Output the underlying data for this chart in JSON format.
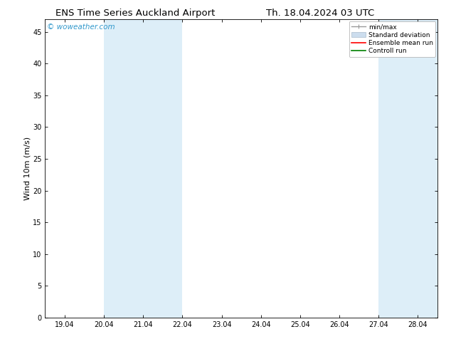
{
  "title_left": "ENS Time Series Auckland Airport",
  "title_right": "Th. 18.04.2024 03 UTC",
  "ylabel": "Wind 10m (m/s)",
  "ylim": [
    0,
    47
  ],
  "yticks": [
    0,
    5,
    10,
    15,
    20,
    25,
    30,
    35,
    40,
    45
  ],
  "xtick_labels": [
    "19.04",
    "20.04",
    "21.04",
    "22.04",
    "23.04",
    "24.04",
    "25.04",
    "26.04",
    "27.04",
    "28.04"
  ],
  "num_xticks": 10,
  "xlim_min": -0.5,
  "xlim_max": 9.5,
  "shaded_regions": [
    {
      "xmin": 1.0,
      "xmax": 3.0,
      "color": "#ddeef8"
    },
    {
      "xmin": 8.0,
      "xmax": 9.5,
      "color": "#ddeef8"
    }
  ],
  "watermark_text": "© woweather.com",
  "watermark_color": "#3399cc",
  "background_color": "#ffffff",
  "plot_bg_color": "#ffffff",
  "legend_items": [
    {
      "label": "min/max",
      "type": "minmax",
      "color": "#999999",
      "lw": 1.0
    },
    {
      "label": "Standard deviation",
      "type": "patch",
      "color": "#ccddee",
      "edgecolor": "#aabbcc",
      "lw": 0.5
    },
    {
      "label": "Ensemble mean run",
      "type": "line",
      "color": "red",
      "lw": 1.2
    },
    {
      "label": "Controll run",
      "type": "line",
      "color": "green",
      "lw": 1.2
    }
  ],
  "spine_color": "#000000",
  "tick_color": "#000000",
  "font_color": "#000000",
  "title_fontsize": 9.5,
  "label_fontsize": 8,
  "tick_fontsize": 7,
  "legend_fontsize": 6.5,
  "watermark_fontsize": 7.5
}
